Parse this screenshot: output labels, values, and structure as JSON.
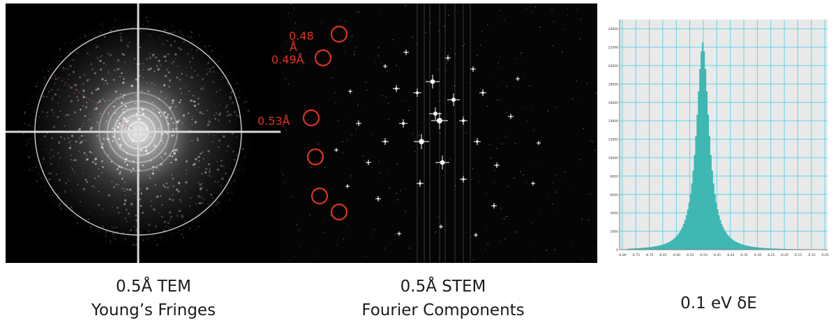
{
  "panels": {
    "tem": {
      "caption_line1": "0.5Å TEM",
      "caption_line2": "Young’s Fringes"
    },
    "stem": {
      "caption_line1": "0.5Å STEM",
      "caption_line2": "Fourier Components",
      "annotations": [
        "0.48",
        "Å",
        "0.49Å",
        "0.53Å"
      ],
      "marker_count": 6
    },
    "histogram": {
      "caption": "0.1 eV δE"
    }
  },
  "colors": {
    "annotation": "#e23222",
    "histogram_fill": "#3fb7b3",
    "histogram_grid": "#5fd6e8",
    "histogram_bg": "#e9e9e9"
  },
  "chart_data": {
    "type": "bar",
    "x": [
      -6.8,
      -6.75,
      -6.7,
      -6.65,
      -6.6,
      -6.55,
      -6.5,
      -6.45,
      -6.4,
      -6.35,
      -6.3,
      -6.25,
      -6.2,
      -6.15,
      -6.1,
      -6.05
    ],
    "xticks": [
      "-6.80",
      "-6.75",
      "-6.70",
      "-6.65",
      "-6.60",
      "-6.55",
      "-6.50",
      "-6.45",
      "-6.40",
      "-6.35",
      "-6.30",
      "-6.25",
      "-6.20",
      "-6.15",
      "-6.10",
      "-6.05"
    ],
    "yticks": [
      "0",
      "2000",
      "4000",
      "6000",
      "8000",
      "10000",
      "12000",
      "14000",
      "16000",
      "18000",
      "20000",
      "22000",
      "24000"
    ],
    "ylim": [
      0,
      25000
    ],
    "xlim": [
      -6.81,
      -6.04
    ],
    "peak_x": -6.505,
    "peak_y": 22500,
    "grid": true
  }
}
